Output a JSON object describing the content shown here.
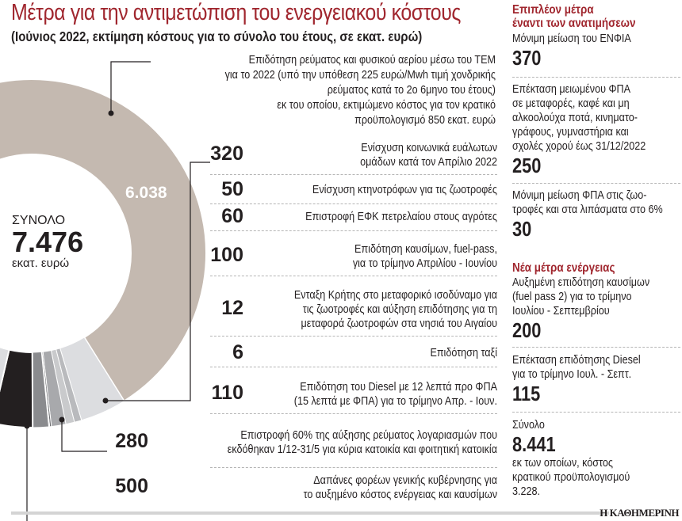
{
  "title": "Μέτρα για την αντιμετώπιση του ενεργειακού κόστους",
  "subtitle": "(Ιούνιος 2022, εκτίμηση κόστους για το σύνολο του έτους, σε εκατ. ευρώ)",
  "total": {
    "label": "ΣΥΝΟΛΟ",
    "value": "7.476",
    "unit": "εκατ. ευρώ"
  },
  "chart_data": {
    "type": "pie",
    "subtype": "donut",
    "total": 7476,
    "slices": [
      {
        "value": 6038,
        "label": "6.038",
        "text": "Επιδότηση ρεύματος και φυσικού αερίου μέσω του ΤΕΜ για το 2022 (υπό την υπόθεση 225 ευρώ/Mwh τιμή χονδρικής ρεύματος κατά το 2ο 6μηνο του έτους) εκ του οποίου, εκτιμώμενο κόστος για τον κρατικό προϋπολογισμό 850 εκατ. ευρώ",
        "color": "#c4b9b0"
      },
      {
        "value": 320,
        "label": "320",
        "lines": [
          "Ενίσχυση κοινωνικά ευάλωτων",
          "ομάδων κατά τον Απρίλιο 2022"
        ],
        "color": "#dcdde0"
      },
      {
        "value": 50,
        "label": "50",
        "lines": [
          "Ενίσχυση κτηνοτρόφων για τις ζωοτροφές"
        ],
        "color": "#b9babd"
      },
      {
        "value": 60,
        "label": "60",
        "lines": [
          "Επιστροφή ΕΦΚ πετρελαίου στους αγρότες"
        ],
        "color": "#c9cacc"
      },
      {
        "value": 100,
        "label": "100",
        "lines": [
          "Επιδότηση καυσίμων, fuel-pass,",
          "για το τρίμηνο Απριλίου - Ιουνίου"
        ],
        "color": "#a8a9ac"
      },
      {
        "value": 12,
        "label": "12",
        "lines": [
          "Ενταξη Κρήτης στο μεταφορικό ισοδύναμο για",
          "τις ζωοτροφές και αύξηση επιδότησης για τη",
          "μεταφορά ζωοτροφών στα νησιά του Αιγαίου"
        ],
        "color": "#6d6e71"
      },
      {
        "value": 6,
        "label": "6",
        "lines": [
          "Επιδότηση ταξί"
        ],
        "color": "#58595b"
      },
      {
        "value": 110,
        "label": "110",
        "lines": [
          "Επιδότηση του Diesel με 12 λεπτά προ ΦΠΑ",
          "(15 λεπτά με ΦΠΑ) για το τρίμηνο Απρ. - Ιουν."
        ],
        "color": "#8a8b8e"
      },
      {
        "value": 280,
        "label": "280",
        "lines": [
          "Επιστροφή 60% της αύξησης ρεύματος λογαριασμών που",
          "εκδόθηκαν 1/12-31/5 για κύρια κατοικία και φοιτητική κατοικία"
        ],
        "color": "#231f20"
      },
      {
        "value": 500,
        "label": "500",
        "lines": [
          "Δαπάνες φορέων γενικής κυβέρνησης για",
          "το αυξημένο κόστος ενέργειας και καυσίμων"
        ],
        "color": "#dcdde0"
      }
    ],
    "top_note_lines": [
      "Επιδότηση ρεύματος και φυσικού αερίου μέσω του ΤΕΜ",
      "για το 2022 (υπό την υπόθεση 225 ευρώ/Mwh τιμή χονδρικής",
      "ρεύματος κατά το 2ο 6μηνο του έτους)",
      "εκ του οποίου, εκτιμώμενο κόστος για τον κρατικό",
      "προϋπολογισμό 850 εκατ. ευρώ"
    ]
  },
  "side": {
    "heading1": [
      "Επιπλέον μέτρα",
      "έναντι των ανατιμήσεων"
    ],
    "items1": [
      {
        "lines": [
          "Μόνιμη μείωση του ΕΝΦΙΑ"
        ],
        "value": "370"
      },
      {
        "lines": [
          "Επέκταση μειωμένου ΦΠΑ",
          "σε μεταφορές, καφέ και μη",
          "αλκοολούχα ποτά, κινηματο-",
          "γράφους, γυμναστήρια και",
          "σχολές χορού έως 31/12/2022"
        ],
        "value": "250"
      },
      {
        "lines": [
          "Μόνιμη μείωση ΦΠΑ στις ζωο-",
          "τροφές και στα λιπάσματα στο 6%"
        ],
        "value": "30"
      }
    ],
    "heading2": "Νέα μέτρα ενέργειας",
    "items2": [
      {
        "lines": [
          "Αυξημένη επιδότηση καυσίμων",
          "(fuel pass 2) για το τρίμηνο",
          "Ιουλίου - Σεπτεμβρίου"
        ],
        "value": "200"
      },
      {
        "lines": [
          "Επέκταση επιδότησης Diesel",
          "για το τρίμηνο Ιουλ. - Σεπτ."
        ],
        "value": "115"
      }
    ],
    "sum": {
      "label": "Σύνολο",
      "value": "8.441",
      "lines": [
        "εκ των οποίων, κόστος",
        "κρατικού προϋπολογισμού",
        "3.228."
      ]
    }
  },
  "source": "Η ΚΑΘΗΜΕΡΙΝΗ"
}
